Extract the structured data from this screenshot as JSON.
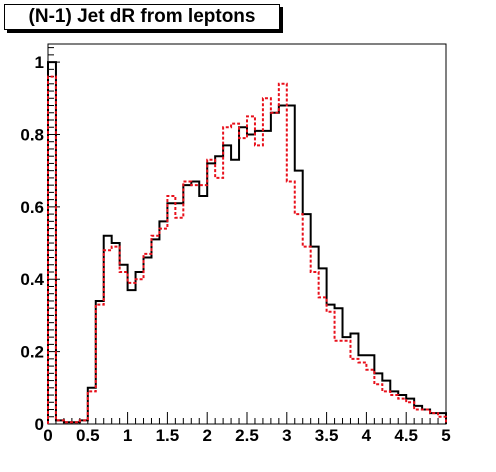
{
  "chart_data": {
    "type": "line",
    "title": "(N-1) Jet dR from leptons",
    "xlabel": "",
    "ylabel": "",
    "xlim": [
      0,
      5
    ],
    "ylim": [
      0,
      1.05
    ],
    "grid": false,
    "legend": "none",
    "x_ticks": [
      "0",
      "0.5",
      "1",
      "1.5",
      "2",
      "2.5",
      "3",
      "3.5",
      "4",
      "4.5",
      "5"
    ],
    "y_ticks": [
      "0",
      "0.2",
      "0.4",
      "0.6",
      "0.8",
      "1"
    ],
    "bin_edges_start": 0,
    "bin_width": 0.1,
    "series": [
      {
        "style": "solid",
        "color": "#000000",
        "values": [
          1.0,
          0.01,
          0.005,
          0.005,
          0.01,
          0.1,
          0.34,
          0.52,
          0.5,
          0.44,
          0.37,
          0.42,
          0.46,
          0.51,
          0.56,
          0.61,
          0.61,
          0.66,
          0.67,
          0.63,
          0.72,
          0.74,
          0.77,
          0.73,
          0.82,
          0.8,
          0.81,
          0.81,
          0.86,
          0.88,
          0.88,
          0.7,
          0.58,
          0.49,
          0.43,
          0.33,
          0.32,
          0.24,
          0.25,
          0.19,
          0.19,
          0.14,
          0.12,
          0.09,
          0.08,
          0.07,
          0.05,
          0.04,
          0.03,
          0.03
        ]
      },
      {
        "style": "dashed",
        "color": "#e8101b",
        "values": [
          0.96,
          0.01,
          0.005,
          0.005,
          0.01,
          0.09,
          0.33,
          0.48,
          0.49,
          0.42,
          0.39,
          0.4,
          0.47,
          0.52,
          0.54,
          0.63,
          0.57,
          0.67,
          0.66,
          0.66,
          0.73,
          0.68,
          0.82,
          0.83,
          0.79,
          0.85,
          0.77,
          0.9,
          0.86,
          0.94,
          0.67,
          0.58,
          0.49,
          0.42,
          0.35,
          0.31,
          0.23,
          0.23,
          0.18,
          0.17,
          0.15,
          0.11,
          0.09,
          0.08,
          0.07,
          0.06,
          0.04,
          0.04,
          0.03,
          0.02
        ]
      }
    ]
  }
}
